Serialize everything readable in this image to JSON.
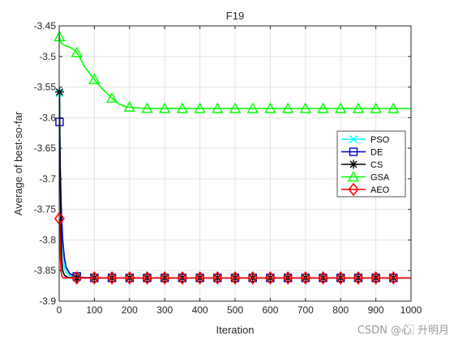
{
  "chart_data": {
    "type": "line",
    "title": "F19",
    "xlabel": "Iteration",
    "ylabel": "Average of best-so-far",
    "xlim": [
      0,
      1000
    ],
    "ylim": [
      -3.9,
      -3.45
    ],
    "x_ticks": [
      0,
      100,
      200,
      300,
      400,
      500,
      600,
      700,
      800,
      900,
      1000
    ],
    "y_ticks": [
      -3.45,
      -3.5,
      -3.55,
      -3.6,
      -3.65,
      -3.7,
      -3.75,
      -3.8,
      -3.85,
      -3.9
    ],
    "x_tick_labels": [
      "0",
      "100",
      "200",
      "300",
      "400",
      "500",
      "600",
      "700",
      "800",
      "900",
      "1000"
    ],
    "y_tick_labels": [
      "-3.45",
      "-3.5",
      "-3.55",
      "-3.6",
      "-3.65",
      "-3.7",
      "-3.75",
      "-3.8",
      "-3.85",
      "-3.9"
    ],
    "grid": true,
    "legend_position": "right",
    "series": [
      {
        "name": "PSO",
        "color": "#00ffff",
        "marker": "x",
        "points": [
          [
            1,
            -3.56
          ],
          [
            3,
            -3.7
          ],
          [
            6,
            -3.78
          ],
          [
            10,
            -3.82
          ],
          [
            15,
            -3.845
          ],
          [
            20,
            -3.853
          ],
          [
            30,
            -3.858
          ],
          [
            40,
            -3.86
          ],
          [
            60,
            -3.861
          ],
          [
            100,
            -3.862
          ],
          [
            1000,
            -3.862
          ]
        ],
        "marker_x": [
          1,
          50,
          100,
          150,
          200,
          250,
          300,
          350,
          400,
          450,
          500,
          550,
          600,
          650,
          700,
          750,
          800,
          850,
          900,
          950
        ]
      },
      {
        "name": "DE",
        "color": "#0000cc",
        "marker": "square",
        "points": [
          [
            1,
            -3.607
          ],
          [
            3,
            -3.68
          ],
          [
            6,
            -3.75
          ],
          [
            10,
            -3.8
          ],
          [
            15,
            -3.83
          ],
          [
            20,
            -3.845
          ],
          [
            30,
            -3.855
          ],
          [
            40,
            -3.858
          ],
          [
            60,
            -3.861
          ],
          [
            100,
            -3.862
          ],
          [
            1000,
            -3.862
          ]
        ],
        "marker_x": [
          1,
          50,
          100,
          150,
          200,
          250,
          300,
          350,
          400,
          450,
          500,
          550,
          600,
          650,
          700,
          750,
          800,
          850,
          900,
          950
        ]
      },
      {
        "name": "CS",
        "color": "#000000",
        "marker": "star",
        "points": [
          [
            1,
            -3.558
          ],
          [
            2,
            -3.65
          ],
          [
            4,
            -3.76
          ],
          [
            7,
            -3.83
          ],
          [
            10,
            -3.85
          ],
          [
            15,
            -3.858
          ],
          [
            25,
            -3.861
          ],
          [
            50,
            -3.862
          ],
          [
            1000,
            -3.862
          ]
        ],
        "marker_x": [
          1,
          50,
          100,
          150,
          200,
          250,
          300,
          350,
          400,
          450,
          500,
          550,
          600,
          650,
          700,
          750,
          800,
          850,
          900,
          950
        ]
      },
      {
        "name": "GSA",
        "color": "#00ff00",
        "marker": "triangle",
        "points": [
          [
            0,
            -3.465
          ],
          [
            5,
            -3.478
          ],
          [
            15,
            -3.482
          ],
          [
            30,
            -3.485
          ],
          [
            45,
            -3.49
          ],
          [
            55,
            -3.497
          ],
          [
            70,
            -3.515
          ],
          [
            90,
            -3.53
          ],
          [
            110,
            -3.545
          ],
          [
            130,
            -3.557
          ],
          [
            150,
            -3.568
          ],
          [
            170,
            -3.578
          ],
          [
            190,
            -3.582
          ],
          [
            220,
            -3.584
          ],
          [
            260,
            -3.585
          ],
          [
            1000,
            -3.585
          ]
        ],
        "marker_x": [
          1,
          50,
          100,
          150,
          200,
          250,
          300,
          350,
          400,
          450,
          500,
          550,
          600,
          650,
          700,
          750,
          800,
          850,
          900,
          950
        ]
      },
      {
        "name": "AEO",
        "color": "#ff0000",
        "marker": "diamond",
        "points": [
          [
            1,
            -3.765
          ],
          [
            3,
            -3.82
          ],
          [
            5,
            -3.85
          ],
          [
            8,
            -3.86
          ],
          [
            12,
            -3.862
          ],
          [
            1000,
            -3.862
          ]
        ],
        "marker_x": [
          1,
          50,
          100,
          150,
          200,
          250,
          300,
          350,
          400,
          450,
          500,
          550,
          600,
          650,
          700,
          750,
          800,
          850,
          900,
          950
        ]
      }
    ]
  },
  "watermark": "CSDN @心 ⃞ 升明月"
}
